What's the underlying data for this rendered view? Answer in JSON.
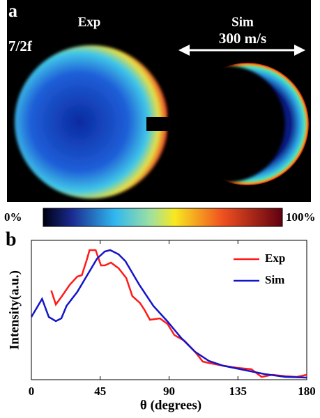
{
  "panel_a": {
    "label": "a",
    "exp_title": "Exp",
    "sim_title": "Sim",
    "frequency": "7/2f",
    "speed": "300 m/s",
    "colorbar_min": "0%",
    "colorbar_max": "100%"
  },
  "chart_data": {
    "type": "line",
    "panel_label": "b",
    "x_label": "θ (degrees)",
    "y_label": "Intensity(a.u.)",
    "xlim": [
      0,
      180
    ],
    "xticks": [
      0,
      45,
      90,
      135,
      180
    ],
    "ylim": [
      0,
      1
    ],
    "legend": "upper right",
    "series": [
      {
        "name": "Exp",
        "color": "#ff1a1a",
        "x": [
          13,
          16,
          20,
          25,
          30,
          33,
          36.5,
          38,
          42,
          45.5,
          48,
          52,
          57,
          62,
          66,
          71,
          74,
          77.5,
          84,
          89,
          93.5,
          100,
          107,
          112,
          116,
          125.5,
          134.5,
          143.8,
          150.5,
          157.5,
          166,
          173.5,
          180
        ],
        "values": [
          0.64,
          0.54,
          0.6,
          0.68,
          0.74,
          0.75,
          0.87,
          0.93,
          0.93,
          0.82,
          0.82,
          0.84,
          0.8,
          0.73,
          0.6,
          0.55,
          0.5,
          0.43,
          0.44,
          0.4,
          0.32,
          0.28,
          0.2,
          0.13,
          0.12,
          0.1,
          0.085,
          0.075,
          0.02,
          0.035,
          0.025,
          0.02,
          0.035
        ]
      },
      {
        "name": "Sim",
        "color": "#1414c8",
        "x": [
          0,
          7,
          11.4,
          16,
          19.6,
          23,
          30,
          36.5,
          43,
          48,
          51.5,
          57,
          61.5,
          70.6,
          79.7,
          88.8,
          97.9,
          107,
          116,
          125.5,
          139,
          152.6,
          166,
          180
        ],
        "values": [
          0.45,
          0.58,
          0.45,
          0.42,
          0.44,
          0.53,
          0.63,
          0.75,
          0.87,
          0.92,
          0.93,
          0.9,
          0.85,
          0.68,
          0.53,
          0.42,
          0.3,
          0.2,
          0.135,
          0.1,
          0.07,
          0.04,
          0.02,
          0.015
        ]
      }
    ]
  }
}
